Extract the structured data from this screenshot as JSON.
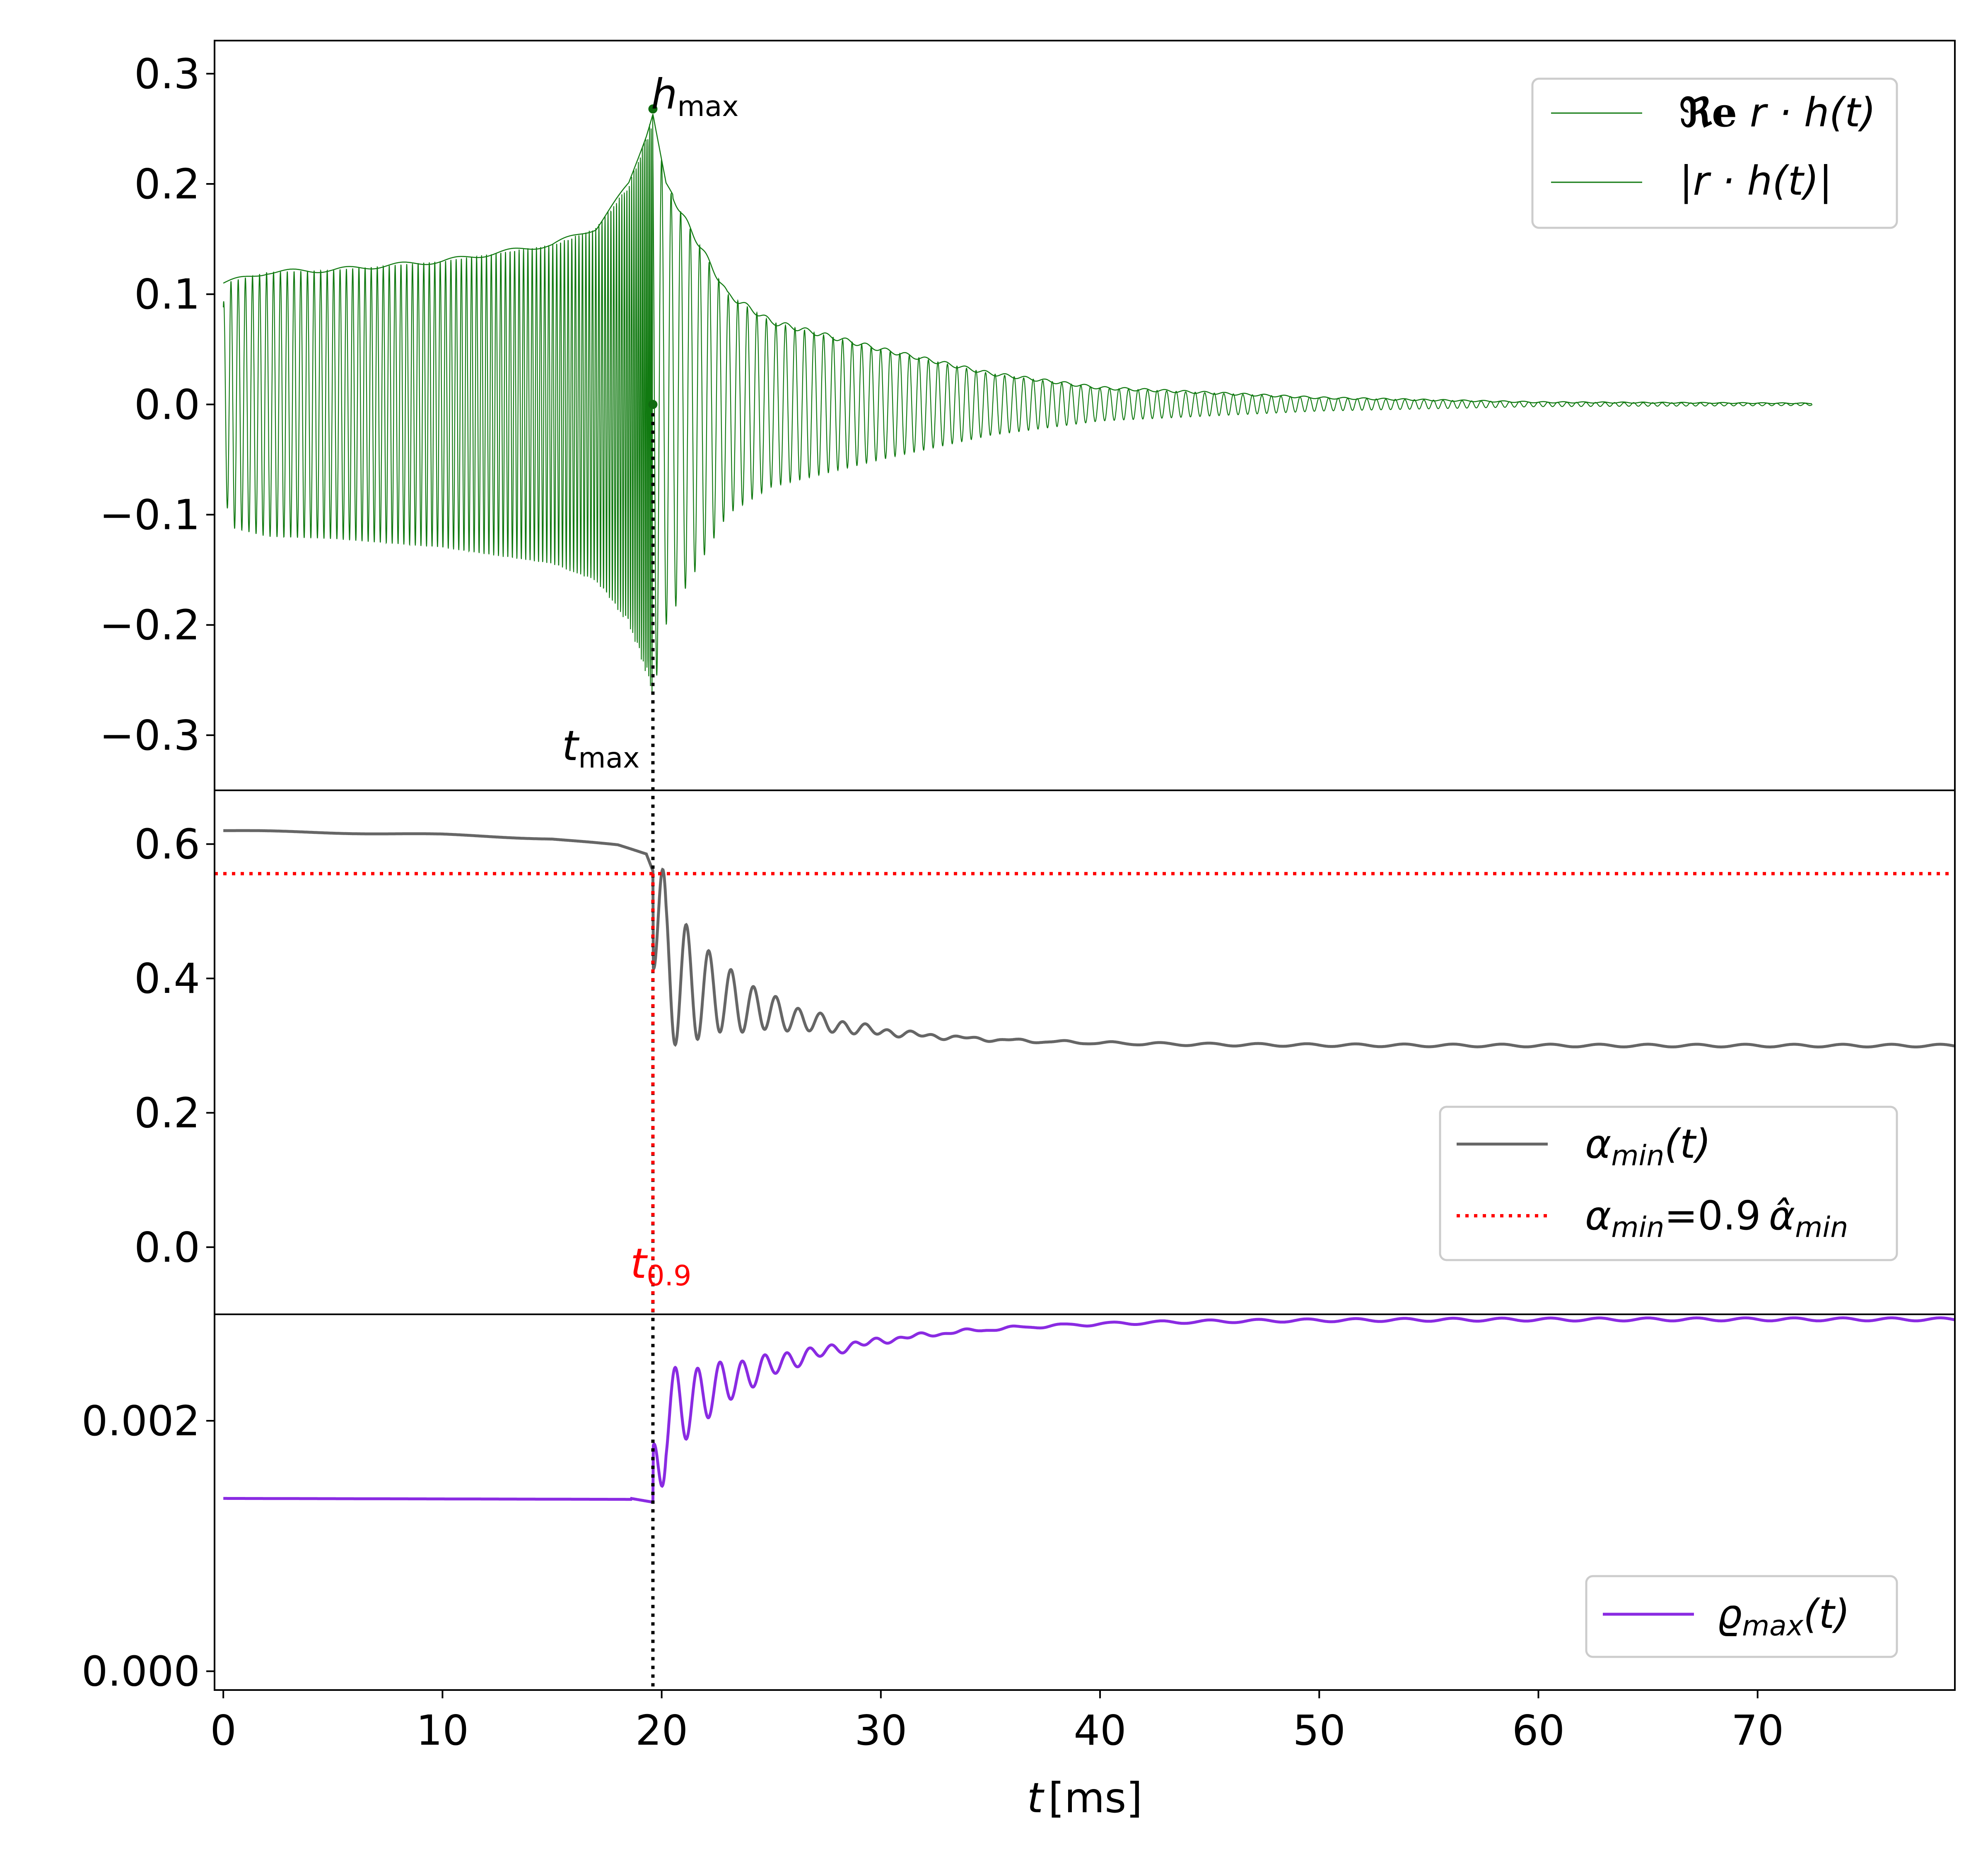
{
  "chart_data": [
    {
      "type": "line",
      "panel": "top",
      "ylim": [
        -0.35,
        0.33
      ],
      "xlim": [
        -0.4,
        79
      ],
      "yticks": [
        "0.3",
        "0.2",
        "0.1",
        "0.0",
        "−0.1",
        "−0.2",
        "−0.3"
      ],
      "ytick_values": [
        0.3,
        0.2,
        0.1,
        0.0,
        -0.1,
        -0.2,
        -0.3
      ],
      "series": [
        {
          "name": "ℜe r · h(t)",
          "color": "#117a11",
          "kind": "chirp-ringdown oscillation",
          "envelope_t": [
            0,
            2,
            5,
            10,
            15,
            17,
            18.5,
            19.3,
            19.6,
            20.2,
            21,
            23,
            25,
            30,
            35,
            40,
            50,
            60,
            72.5
          ],
          "envelope_v": [
            0.11,
            0.12,
            0.122,
            0.13,
            0.145,
            0.16,
            0.2,
            0.245,
            0.265,
            0.2,
            0.17,
            0.1,
            0.075,
            0.05,
            0.028,
            0.015,
            0.006,
            0.002,
            0.001
          ]
        },
        {
          "name": "|r · h(t)|",
          "color": "#117a11",
          "kind": "amplitude envelope"
        }
      ],
      "markers": {
        "t_max": 19.6,
        "h_max": 0.268
      },
      "annotations": {
        "h_max_label": "h",
        "h_max_sub": "max",
        "t_max_label": "t",
        "t_max_sub": "max"
      },
      "legend": [
        "ℜe r · h(t)",
        "|r · h(t)|"
      ],
      "legend_loc": "upper right"
    },
    {
      "type": "line",
      "panel": "middle",
      "ylim": [
        -0.1,
        0.68
      ],
      "yticks": [
        "0.6",
        "0.4",
        "0.2",
        "0.0"
      ],
      "ytick_values": [
        0.6,
        0.4,
        0.2,
        0.0
      ],
      "series": [
        {
          "name": "αmin(t)",
          "color": "#666666",
          "pre_merger_t": [
            0,
            5,
            10,
            15,
            18,
            19.3,
            19.6
          ],
          "pre_merger_v": [
            0.62,
            0.617,
            0.614,
            0.608,
            0.598,
            0.585,
            0.56
          ],
          "late_value": 0.3
        },
        {
          "name": "αmin=0.9 α̂min",
          "color": "#ff0000",
          "value": 0.556,
          "style": "dotted"
        }
      ],
      "markers": {
        "t_0.9": 19.6
      },
      "annotations": {
        "t09_label": "t",
        "t09_sub": "0.9"
      },
      "legend_loc": "lower right"
    },
    {
      "type": "line",
      "panel": "bottom",
      "ylim": [
        -0.00015,
        0.00285
      ],
      "yticks": [
        "0.002",
        "0.000"
      ],
      "ytick_values": [
        0.002,
        0.0
      ],
      "series": [
        {
          "name": "ϱmax(t)",
          "color": "#8a2be2",
          "pre_merger_value": 0.00138,
          "late_value": 0.00281
        }
      ],
      "legend_loc": "lower right"
    }
  ],
  "xaxis": {
    "label_t": "t",
    "label_unit": "[ms]",
    "ticks": [
      "0",
      "10",
      "20",
      "30",
      "40",
      "50",
      "60",
      "70"
    ],
    "tick_values": [
      0,
      10,
      20,
      30,
      40,
      50,
      60,
      70
    ]
  },
  "legend_labels": {
    "top1_pre": "ℜe",
    "top1_post": " r · h(t)",
    "top2": "|r · h(t)|",
    "mid1_alpha": "α",
    "mid1_sub": "min",
    "mid1_post": "(t)",
    "mid2_alpha": "α",
    "mid2_sub": "min",
    "mid2_eq": "=0.9 ",
    "mid2_hat": "α̂",
    "mid2_sub2": "min",
    "bot1_rho": "ϱ",
    "bot1_sub": "max",
    "bot1_post": "(t)"
  },
  "colors": {
    "green": "#117a11",
    "gray": "#666666",
    "red": "#ff0000",
    "purple": "#8a2be2",
    "black": "#000000"
  }
}
